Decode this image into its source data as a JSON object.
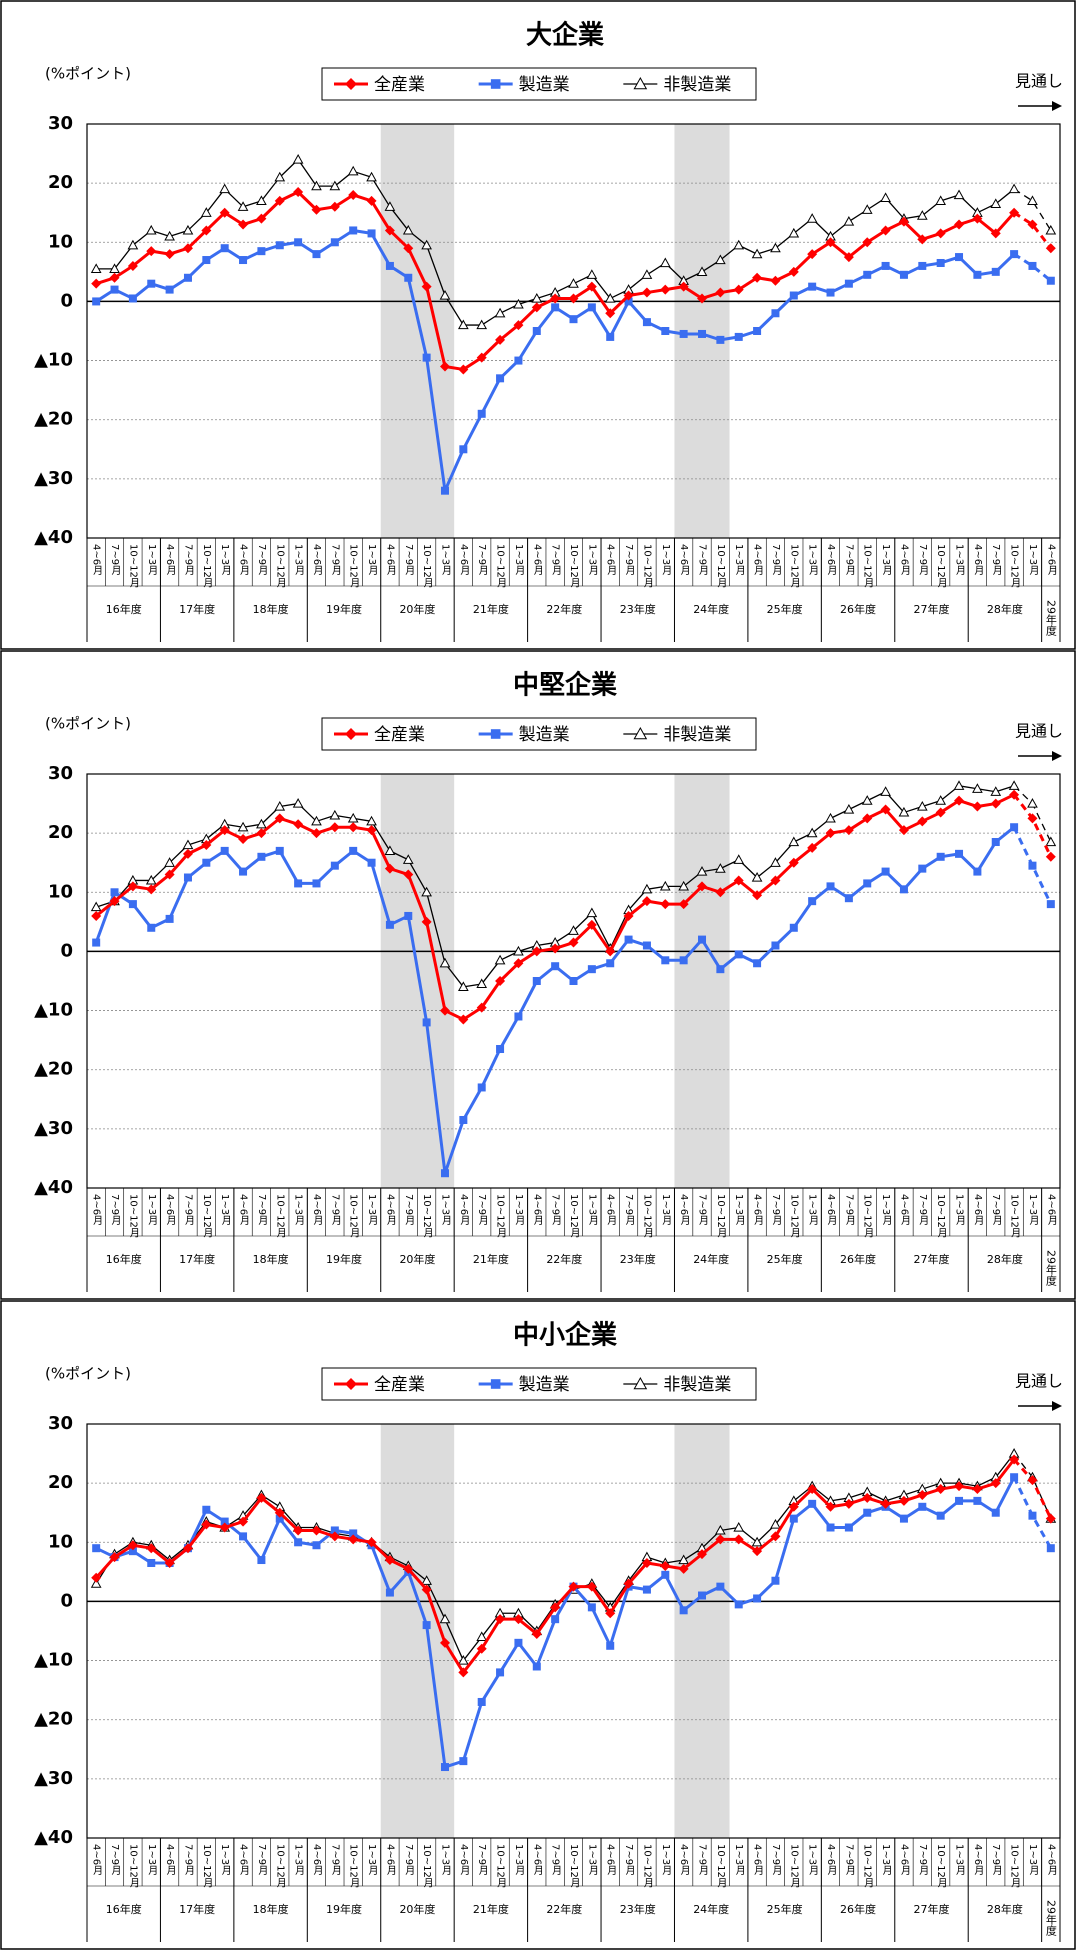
{
  "chart_data": [
    {
      "type": "line",
      "title": "大企業",
      "y_label": "(%ポイント)",
      "annotation": "見通し",
      "categories": [
        "4~6月",
        "7~9月",
        "10~12月",
        "1~3月",
        "4~6月",
        "7~9月",
        "10~12月",
        "1~3月",
        "4~6月",
        "7~9月",
        "10~12月",
        "1~3月",
        "4~6月",
        "7~9月",
        "10~12月",
        "1~3月",
        "4~6月",
        "7~9月",
        "10~12月",
        "1~3月",
        "4~6月",
        "7~9月",
        "10~12月",
        "1~3月",
        "4~6月",
        "7~9月",
        "10~12月",
        "1~3月",
        "4~6月",
        "7~9月",
        "10~12月",
        "1~3月",
        "4~6月",
        "7~9月",
        "10~12月",
        "1~3月",
        "4~6月",
        "7~9月",
        "10~12月",
        "1~3月",
        "4~6月",
        "7~9月",
        "10~12月",
        "1~3月",
        "4~6月",
        "7~9月",
        "10~12月",
        "1~3月",
        "4~6月",
        "7~9月",
        "10~12月",
        "1~3月",
        "4~6月"
      ],
      "x_groups": [
        "16年度",
        "17年度",
        "18年度",
        "19年度",
        "20年度",
        "21年度",
        "22年度",
        "23年度",
        "24年度",
        "25年度",
        "26年度",
        "27年度",
        "28年度",
        "29年度"
      ],
      "ylim": [
        -40,
        30
      ],
      "yticks": [
        30,
        20,
        10,
        0,
        {
          "value": -10,
          "label": "▲10"
        },
        {
          "value": -20,
          "label": "▲20"
        },
        {
          "value": -30,
          "label": "▲30"
        },
        {
          "value": -40,
          "label": "▲40"
        }
      ],
      "grid": true,
      "shaded": [
        [
          16,
          19
        ],
        [
          32,
          34
        ]
      ],
      "forecast_points": 2,
      "series": [
        {
          "name": "全産業",
          "color": "#ff0000",
          "marker": "diamond",
          "values": [
            3,
            4,
            6,
            8.5,
            8,
            9,
            12,
            15,
            13,
            14,
            17,
            18.5,
            15.5,
            16,
            18,
            17,
            12,
            9,
            2.5,
            -11,
            -11.5,
            -9.5,
            -6.5,
            -4,
            -1,
            0.5,
            0.5,
            2.5,
            -2,
            1,
            1.5,
            2,
            2.5,
            0.5,
            1.5,
            2,
            4,
            3.5,
            5,
            8,
            10,
            7.5,
            10,
            12,
            13.5,
            10.5,
            11.5,
            13,
            14,
            11.5,
            15,
            13,
            9
          ]
        },
        {
          "name": "製造業",
          "color": "#3a6df0",
          "marker": "square",
          "values": [
            0,
            2,
            0.5,
            3,
            2,
            4,
            7,
            9,
            7,
            8.5,
            9.5,
            10,
            8,
            10,
            12,
            11.5,
            6,
            4,
            -9.5,
            -32,
            -25,
            -19,
            -13,
            -10,
            -5,
            -1,
            -3,
            -1,
            -6,
            0,
            -3.5,
            -5,
            -5.5,
            -5.5,
            -6.5,
            -6,
            -5,
            -2,
            1,
            2.5,
            1.5,
            3,
            4.5,
            6,
            4.5,
            6,
            6.5,
            7.5,
            4.5,
            5,
            8,
            6,
            3.5
          ]
        },
        {
          "name": "非製造業",
          "color": "#000000",
          "marker": "triangle",
          "values": [
            5.5,
            5.5,
            9.5,
            12,
            11,
            12,
            15,
            19,
            16,
            17,
            21,
            24,
            19.5,
            19.5,
            22,
            21,
            16,
            12,
            9.5,
            1,
            -4,
            -4,
            -2,
            -0.5,
            0.5,
            1.5,
            3,
            4.5,
            0.5,
            2,
            4.5,
            6.5,
            3.5,
            5,
            7,
            9.5,
            8,
            9,
            11.5,
            14,
            11,
            13.5,
            15.5,
            17.5,
            14,
            14.5,
            17,
            18,
            15,
            16.5,
            19,
            17,
            12
          ]
        }
      ]
    },
    {
      "type": "line",
      "title": "中堅企業",
      "y_label": "(%ポイント)",
      "annotation": "見通し",
      "categories": [
        "4~6月",
        "7~9月",
        "10~12月",
        "1~3月",
        "4~6月",
        "7~9月",
        "10~12月",
        "1~3月",
        "4~6月",
        "7~9月",
        "10~12月",
        "1~3月",
        "4~6月",
        "7~9月",
        "10~12月",
        "1~3月",
        "4~6月",
        "7~9月",
        "10~12月",
        "1~3月",
        "4~6月",
        "7~9月",
        "10~12月",
        "1~3月",
        "4~6月",
        "7~9月",
        "10~12月",
        "1~3月",
        "4~6月",
        "7~9月",
        "10~12月",
        "1~3月",
        "4~6月",
        "7~9月",
        "10~12月",
        "1~3月",
        "4~6月",
        "7~9月",
        "10~12月",
        "1~3月",
        "4~6月",
        "7~9月",
        "10~12月",
        "1~3月",
        "4~6月",
        "7~9月",
        "10~12月",
        "1~3月",
        "4~6月",
        "7~9月",
        "10~12月",
        "1~3月",
        "4~6月"
      ],
      "x_groups": [
        "16年度",
        "17年度",
        "18年度",
        "19年度",
        "20年度",
        "21年度",
        "22年度",
        "23年度",
        "24年度",
        "25年度",
        "26年度",
        "27年度",
        "28年度",
        "29年度"
      ],
      "ylim": [
        -40,
        30
      ],
      "yticks": [
        30,
        20,
        10,
        0,
        {
          "value": -10,
          "label": "▲10"
        },
        {
          "value": -20,
          "label": "▲20"
        },
        {
          "value": -30,
          "label": "▲30"
        },
        {
          "value": -40,
          "label": "▲40"
        }
      ],
      "grid": true,
      "shaded": [
        [
          16,
          19
        ],
        [
          32,
          34
        ]
      ],
      "forecast_points": 2,
      "series": [
        {
          "name": "全産業",
          "color": "#ff0000",
          "marker": "diamond",
          "values": [
            6,
            8.5,
            11,
            10.5,
            13,
            16.5,
            18,
            20.5,
            19,
            20,
            22.5,
            21.5,
            20,
            21,
            21,
            20.5,
            14,
            13,
            5,
            -10,
            -11.5,
            -9.5,
            -5,
            -2,
            0,
            0.5,
            1.5,
            4.5,
            0,
            6,
            8.5,
            8,
            8,
            11,
            10,
            12,
            9.5,
            12,
            15,
            17.5,
            20,
            20.5,
            22.5,
            24,
            20.5,
            22,
            23.5,
            25.5,
            24.5,
            25,
            26.5,
            22.5,
            16
          ]
        },
        {
          "name": "製造業",
          "color": "#3a6df0",
          "marker": "square",
          "values": [
            1.5,
            10,
            8,
            4,
            5.5,
            12.5,
            15,
            17,
            13.5,
            16,
            17,
            11.5,
            11.5,
            14.5,
            17,
            15,
            4.5,
            6,
            -12,
            -37.5,
            -28.5,
            -23,
            -16.5,
            -11,
            -5,
            -2.5,
            -5,
            -3,
            -2,
            2,
            1,
            -1.5,
            -1.5,
            2,
            -3,
            -0.5,
            -2,
            1,
            4,
            8.5,
            11,
            9,
            11.5,
            13.5,
            10.5,
            14,
            16,
            16.5,
            13.5,
            18.5,
            21,
            14.5,
            8
          ]
        },
        {
          "name": "非製造業",
          "color": "#000000",
          "marker": "triangle",
          "values": [
            7.5,
            8.5,
            12,
            12,
            15,
            18,
            19,
            21.5,
            21,
            21.5,
            24.5,
            25,
            22,
            23,
            22.5,
            22,
            17,
            15.5,
            10,
            -2,
            -6,
            -5.5,
            -1.5,
            0,
            1,
            1.5,
            3.5,
            6.5,
            0.5,
            7,
            10.5,
            11,
            11,
            13.5,
            14,
            15.5,
            12.5,
            15,
            18.5,
            20,
            22.5,
            24,
            25.5,
            27,
            23.5,
            24.5,
            25.5,
            28,
            27.5,
            27,
            28,
            25,
            18.5
          ]
        }
      ]
    },
    {
      "type": "line",
      "title": "中小企業",
      "y_label": "(%ポイント)",
      "annotation": "見通し",
      "categories": [
        "4~6月",
        "7~9月",
        "10~12月",
        "1~3月",
        "4~6月",
        "7~9月",
        "10~12月",
        "1~3月",
        "4~6月",
        "7~9月",
        "10~12月",
        "1~3月",
        "4~6月",
        "7~9月",
        "10~12月",
        "1~3月",
        "4~6月",
        "7~9月",
        "10~12月",
        "1~3月",
        "4~6月",
        "7~9月",
        "10~12月",
        "1~3月",
        "4~6月",
        "7~9月",
        "10~12月",
        "1~3月",
        "4~6月",
        "7~9月",
        "10~12月",
        "1~3月",
        "4~6月",
        "7~9月",
        "10~12月",
        "1~3月",
        "4~6月",
        "7~9月",
        "10~12月",
        "1~3月",
        "4~6月",
        "7~9月",
        "10~12月",
        "1~3月",
        "4~6月",
        "7~9月",
        "10~12月",
        "1~3月",
        "4~6月",
        "7~9月",
        "10~12月",
        "1~3月",
        "4~6月"
      ],
      "x_groups": [
        "16年度",
        "17年度",
        "18年度",
        "19年度",
        "20年度",
        "21年度",
        "22年度",
        "23年度",
        "24年度",
        "25年度",
        "26年度",
        "27年度",
        "28年度",
        "29年度"
      ],
      "ylim": [
        -40,
        30
      ],
      "yticks": [
        30,
        20,
        10,
        0,
        {
          "value": -10,
          "label": "▲10"
        },
        {
          "value": -20,
          "label": "▲20"
        },
        {
          "value": -30,
          "label": "▲30"
        },
        {
          "value": -40,
          "label": "▲40"
        }
      ],
      "grid": true,
      "shaded": [
        [
          16,
          19
        ],
        [
          32,
          34
        ]
      ],
      "forecast_points": 2,
      "series": [
        {
          "name": "全産業",
          "color": "#ff0000",
          "marker": "diamond",
          "values": [
            4,
            7.5,
            9.5,
            9,
            6.5,
            9,
            13,
            12.5,
            13.5,
            17.5,
            15,
            12,
            12,
            11,
            10.5,
            10,
            7,
            5.5,
            2,
            -7,
            -12,
            -8,
            -3,
            -3,
            -5.5,
            -1,
            2.5,
            2.5,
            -2,
            3,
            6.5,
            6,
            5.5,
            8,
            10.5,
            10.5,
            8.5,
            11,
            16,
            19,
            16,
            16.5,
            17.5,
            16.5,
            17,
            18,
            19,
            19.5,
            19,
            20,
            24,
            20.5,
            14
          ]
        },
        {
          "name": "製造業",
          "color": "#3a6df0",
          "marker": "square",
          "values": [
            9,
            7.5,
            8.5,
            6.5,
            6.5,
            9,
            15.5,
            13.5,
            11,
            7,
            14,
            10,
            9.5,
            12,
            11.5,
            9.5,
            1.5,
            5,
            -4,
            -28,
            -27,
            -17,
            -12,
            -7,
            -11,
            -3,
            2.5,
            -1,
            -7.5,
            2.5,
            2,
            4.5,
            -1.5,
            1,
            2.5,
            -0.5,
            0.5,
            3.5,
            14,
            16.5,
            12.5,
            12.5,
            15,
            16,
            14,
            16,
            14.5,
            17,
            17,
            15,
            21,
            14.5,
            9
          ]
        },
        {
          "name": "非製造業",
          "color": "#000000",
          "marker": "triangle",
          "values": [
            3,
            8,
            10,
            9.5,
            7,
            9.5,
            13.5,
            12.5,
            14.5,
            18,
            16,
            12.5,
            12.5,
            11.5,
            11,
            10,
            7.5,
            6,
            3.5,
            -3,
            -10,
            -6,
            -2,
            -2,
            -5,
            -0.5,
            2,
            3,
            -1,
            3.5,
            7.5,
            6.5,
            7,
            9,
            12,
            12.5,
            10,
            13,
            17,
            19.5,
            17,
            17.5,
            18.5,
            17,
            18,
            19,
            20,
            20,
            19.5,
            21,
            25,
            21,
            14
          ]
        }
      ]
    }
  ]
}
